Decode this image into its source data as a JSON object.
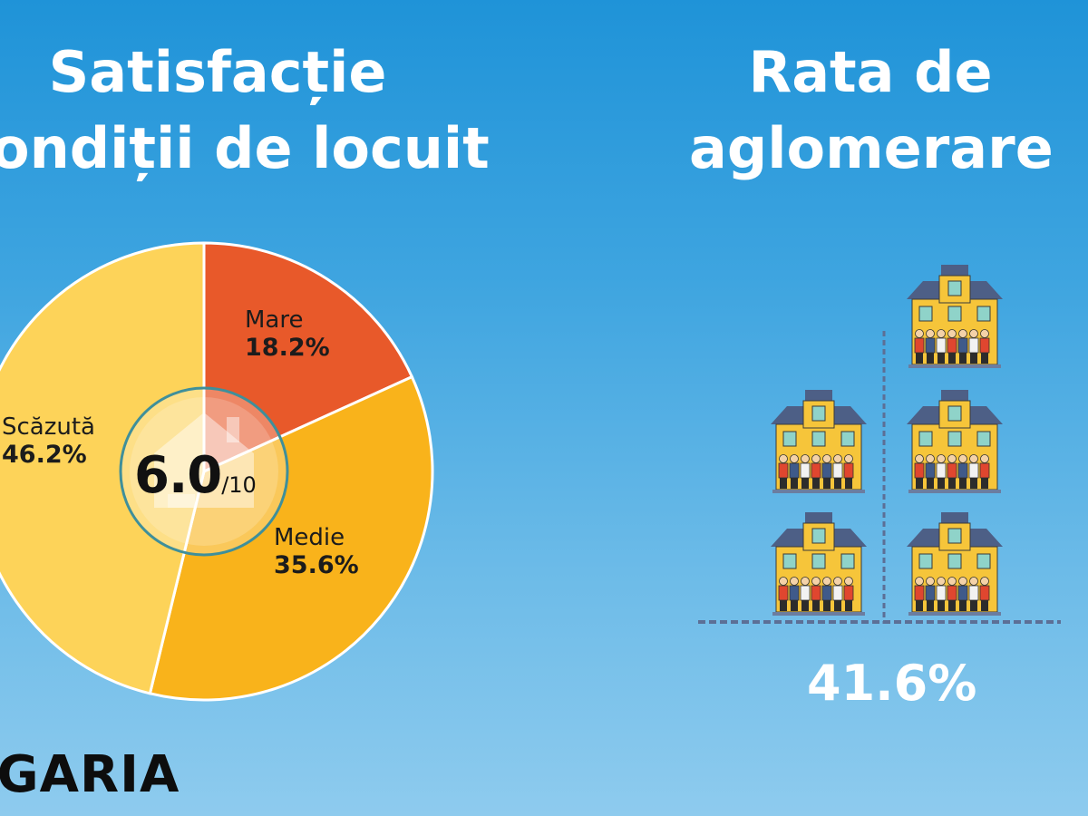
{
  "chart_data": [
    {
      "type": "pie",
      "title": "Satisfacție condiții de locuit",
      "title_lines": [
        "Satisfacție",
        "ondiții de locuit"
      ],
      "slices": [
        {
          "label": "Mare",
          "value": 18.2,
          "value_text": "18.2%",
          "color": "#e8592a"
        },
        {
          "label": "Medie",
          "value": 35.6,
          "value_text": "35.6%",
          "color": "#f9b31b"
        },
        {
          "label": "Scăzută",
          "value": 46.2,
          "value_text": "46.2%",
          "color": "#fdd359"
        }
      ],
      "center_score": "6.0",
      "center_scale": "/10",
      "center_icon": "house-icon"
    },
    {
      "type": "pictogram",
      "title": "Rata de aglomerare",
      "title_lines": [
        "Rata de",
        "aglomerare"
      ],
      "value": 41.6,
      "value_text": "41.6%",
      "icon": "crowded-house-icon"
    }
  ],
  "country": "LGARIA",
  "colors": {
    "house_wall": "#f6c53a",
    "house_roof": "#4d5f86",
    "house_window": "#8fd3c9",
    "divider": "#5c6f96"
  }
}
